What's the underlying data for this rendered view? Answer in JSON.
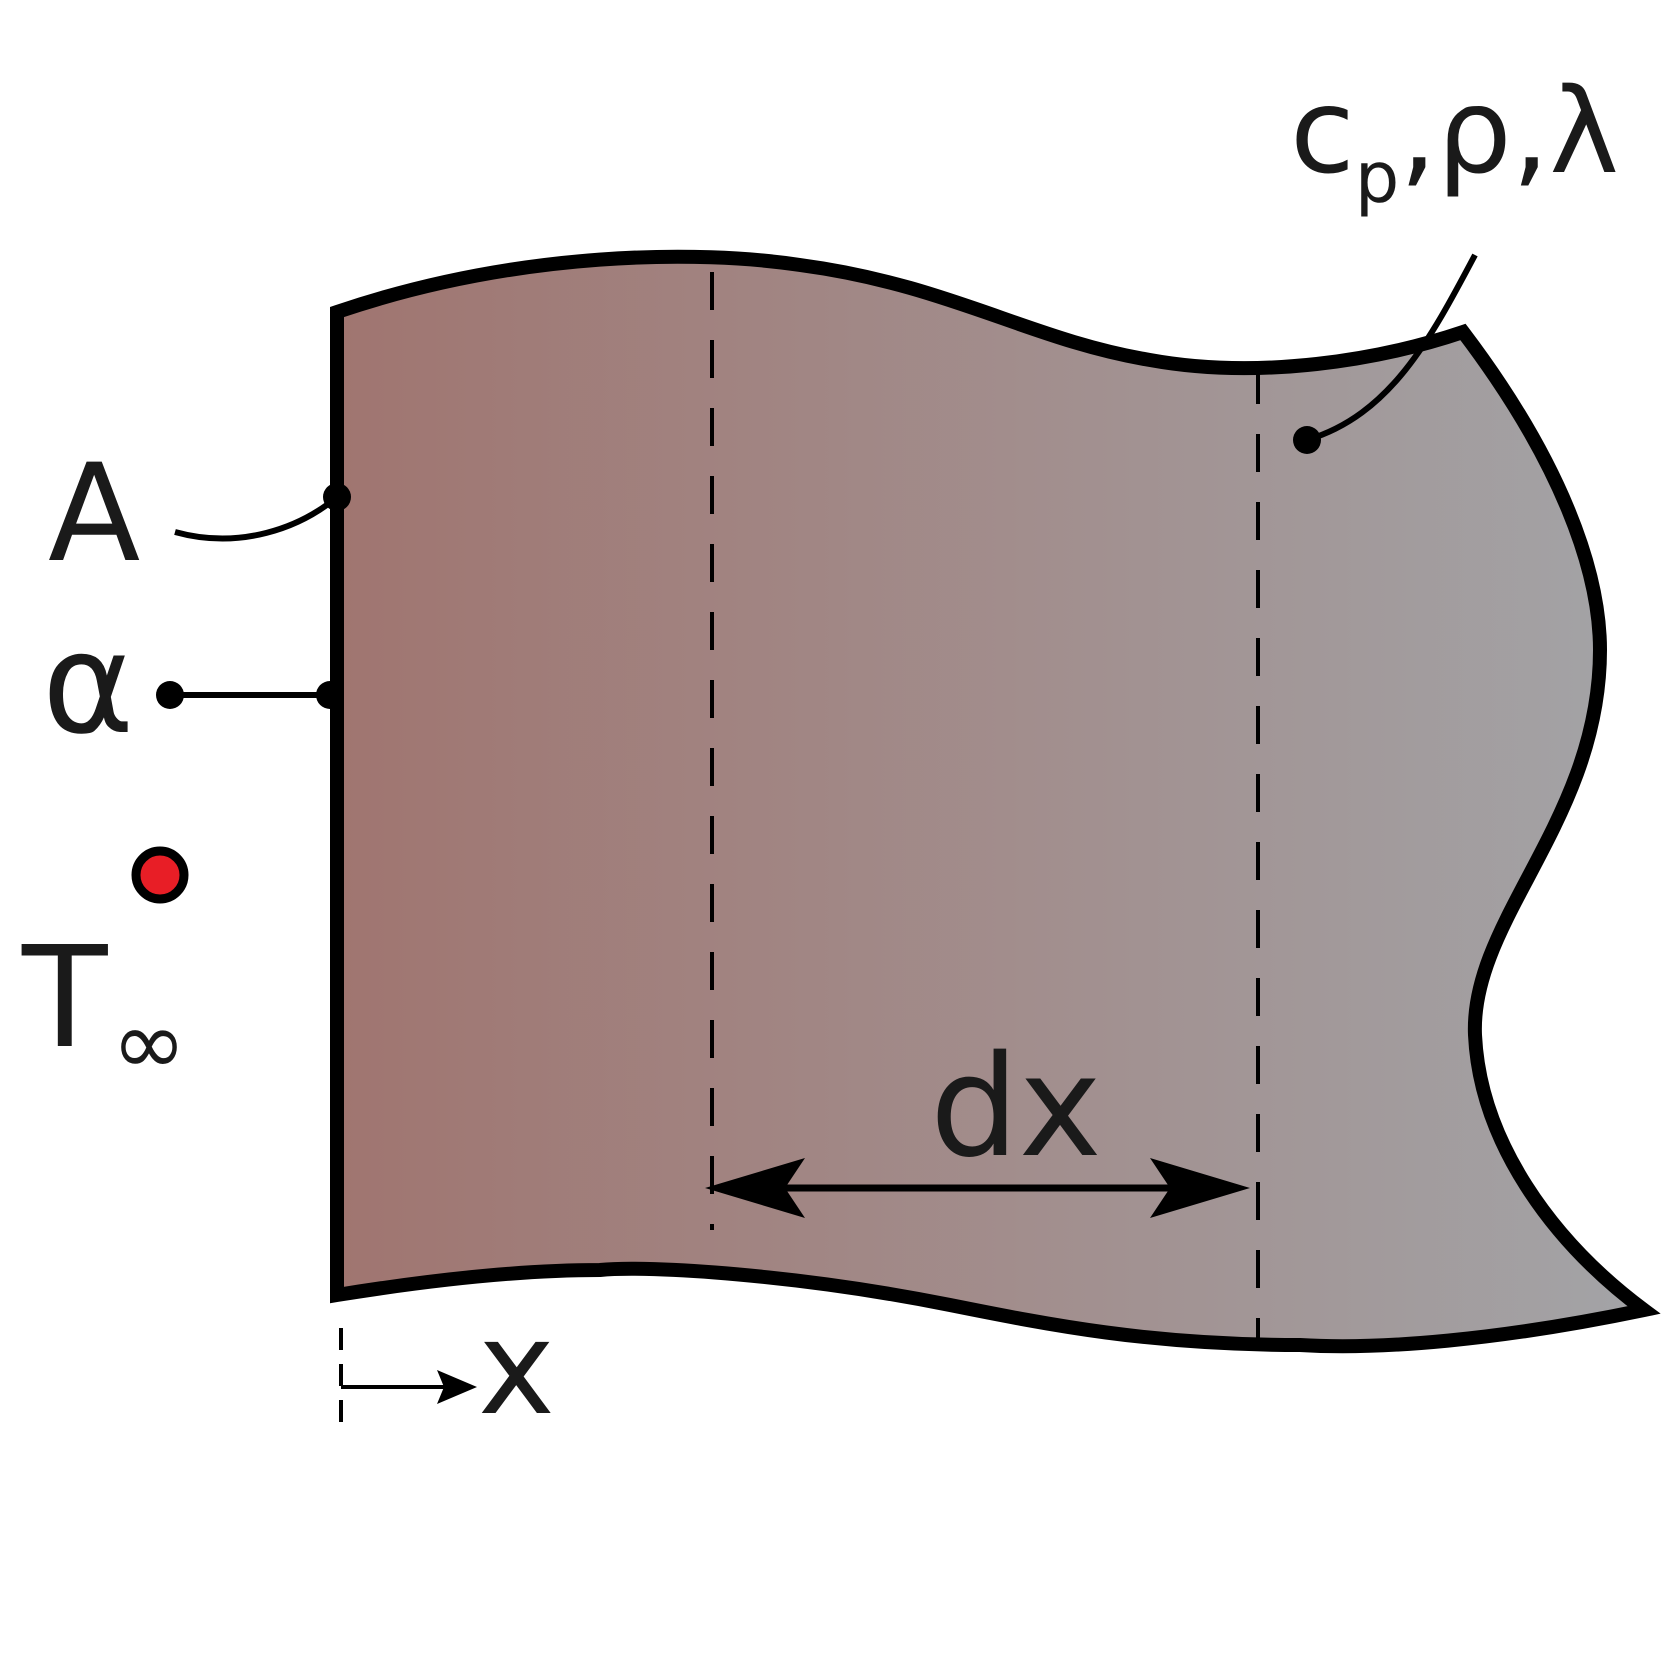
{
  "labels": {
    "material_props_main": "c",
    "material_props_sub": "p",
    "material_props_rest": ",ρ,λ",
    "area": "A",
    "heat_transfer_coeff": "α",
    "ambient_temp_main": "T",
    "ambient_temp_sub": "∞",
    "element_width": "dx",
    "coordinate": "x"
  },
  "colors": {
    "gradient_start": "#a07570",
    "gradient_end": "#a3a4a7",
    "outline": "#000000",
    "ambient_point": "#e81e26"
  }
}
